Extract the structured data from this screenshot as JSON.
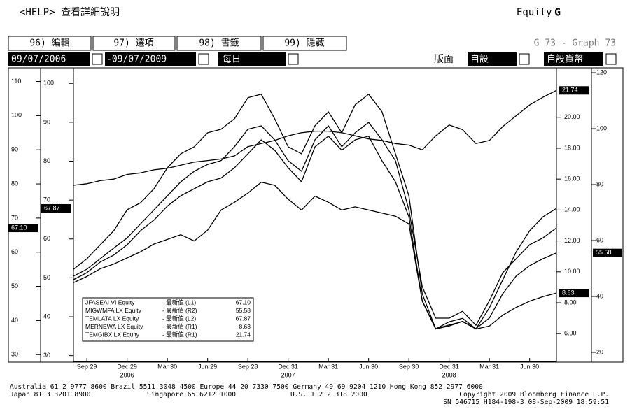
{
  "header": {
    "help": "<HELP> 查看詳細說明",
    "equity": "Equity",
    "equity_key": "G"
  },
  "toolbar": {
    "buttons": [
      "96) 編輯",
      "97) 選項",
      "98) 書籤",
      "99) 隱藏"
    ],
    "graph_id": "G 73 - Graph 73",
    "start_date": "09/07/2006",
    "end_date": "-09/07/2009",
    "frequency": "每日",
    "layout_label": "版面",
    "layout_value": "自設",
    "currency": "自設貨幣"
  },
  "chart_data": {
    "type": "line",
    "categories": [
      null,
      "Sep 29",
      null,
      null,
      "Dec 29",
      null,
      null,
      "Mar 30",
      null,
      null,
      "Jun 29",
      null,
      null,
      "Sep 28",
      null,
      null,
      "Dec 31",
      null,
      null,
      "Mar 31",
      null,
      null,
      "Jun 30",
      null,
      null,
      "Sep 30",
      null,
      null,
      "Dec 31",
      null,
      null,
      "Mar 31",
      null,
      null,
      "Jun 30",
      null,
      null
    ],
    "x_year_labels": [
      null,
      null,
      null,
      null,
      "2006",
      null,
      null,
      null,
      null,
      null,
      null,
      null,
      null,
      null,
      null,
      null,
      "2007",
      null,
      null,
      null,
      null,
      null,
      null,
      null,
      null,
      null,
      null,
      null,
      "2008",
      null,
      null,
      null,
      null,
      null,
      null,
      null,
      null
    ],
    "axes": [
      {
        "name": "L1",
        "ylim": [
          28,
          114
        ],
        "yticks": [
          30,
          40,
          50,
          60,
          70,
          80,
          90,
          100,
          110
        ]
      },
      {
        "name": "L2",
        "ylim": [
          28.5,
          104
        ],
        "yticks": [
          30,
          40,
          50,
          60,
          70,
          80,
          90,
          100
        ]
      },
      {
        "name": "R1",
        "ylim": [
          4.2,
          23.2
        ],
        "yticks": [
          {
            "value": 6,
            "label": "6.00"
          },
          {
            "value": 8,
            "label": "8.00"
          },
          {
            "value": 10,
            "label": "10.00"
          },
          {
            "value": 12,
            "label": "12.00"
          },
          {
            "value": 14,
            "label": "14.00"
          },
          {
            "value": 16,
            "label": "16.00"
          },
          {
            "value": 18,
            "label": "18.00"
          },
          {
            "value": 20,
            "label": "20.00"
          }
        ]
      },
      {
        "name": "R2",
        "ylim": [
          16.75,
          121.75
        ],
        "yticks": [
          20,
          40,
          60,
          80,
          100,
          120
        ]
      }
    ],
    "series": [
      {
        "name": "JFASEAI VI Equity",
        "legend_text": "- 最新值 (L1)",
        "axis": "L1",
        "color": "#000000",
        "last_label": "67.10",
        "values": [
          53.0,
          55.0,
          58.1,
          61.2,
          64.2,
          68.3,
          72.4,
          76.5,
          80.6,
          83.7,
          85.7,
          86.8,
          90.9,
          96.0,
          97.0,
          92.9,
          86.8,
          83.7,
          92.9,
          97.0,
          90.9,
          95.0,
          98.0,
          92.9,
          86.8,
          72.4,
          49.9,
          40.7,
          40.7,
          42.7,
          38.6,
          45.8,
          54.0,
          58.1,
          62.2,
          64.2,
          67.1
        ]
      },
      {
        "name": "MIGWMFA LX Equity",
        "legend_text": "- 最新值 (R2)",
        "axis": "R2",
        "color": "#000000",
        "last_label": "55.58",
        "values": [
          46.0,
          48.5,
          52.3,
          54.8,
          58.5,
          63.5,
          67.3,
          72.3,
          76.0,
          78.5,
          81.0,
          82.3,
          86.0,
          91.0,
          96.0,
          92.3,
          86.0,
          81.0,
          93.5,
          97.3,
          92.3,
          96.0,
          97.3,
          88.5,
          81.0,
          68.5,
          38.5,
          28.5,
          29.8,
          31.0,
          28.5,
          32.3,
          41.0,
          47.3,
          51.0,
          53.5,
          55.58
        ]
      },
      {
        "name": "TEMLATA LX Equity",
        "legend_text": "- 最新值 (L2)",
        "axis": "L2",
        "color": "#000000",
        "last_label": "67.87",
        "values": [
          52.2,
          54.9,
          58.5,
          62.1,
          67.5,
          69.3,
          72.9,
          78.3,
          81.9,
          83.7,
          87.3,
          88.2,
          90.9,
          96.3,
          97.2,
          90.9,
          83.7,
          81.9,
          89.1,
          92.7,
          87.3,
          94.5,
          97.2,
          92.7,
          81.9,
          71.1,
          45.9,
          36.9,
          38.7,
          39.6,
          36.9,
          42.3,
          49.5,
          56.7,
          62.1,
          65.7,
          67.87
        ]
      },
      {
        "name": "MERNEWA LX Equity",
        "legend_text": "- 最新值 (R1)",
        "axis": "R1",
        "color": "#000000",
        "last_label": "8.63",
        "values": [
          9.3,
          9.7,
          10.2,
          10.5,
          10.9,
          11.3,
          11.8,
          12.1,
          12.4,
          12.0,
          12.7,
          14.0,
          14.5,
          15.1,
          15.8,
          15.6,
          14.7,
          14.0,
          14.9,
          14.5,
          14.0,
          14.2,
          14.0,
          13.8,
          13.6,
          13.1,
          8.1,
          6.3,
          6.5,
          6.8,
          6.3,
          6.5,
          7.2,
          7.7,
          8.1,
          8.4,
          8.63
        ]
      },
      {
        "name": "TEMGIBX LX Equity",
        "legend_text": "- 最新值 (R1)",
        "axis": "R1",
        "color": "#000000",
        "last_label": "21.74",
        "values": [
          15.6,
          15.7,
          15.9,
          16.0,
          16.3,
          16.4,
          16.6,
          16.7,
          16.9,
          17.1,
          17.2,
          17.3,
          17.5,
          18.1,
          18.3,
          18.5,
          18.8,
          19.0,
          19.1,
          19.1,
          19.0,
          18.8,
          18.6,
          18.5,
          18.3,
          18.2,
          17.9,
          18.8,
          19.5,
          19.2,
          18.3,
          18.5,
          19.4,
          20.1,
          20.8,
          21.3,
          21.74
        ]
      }
    ]
  },
  "footer": {
    "line1": "Australia 61 2 9777 8600 Brazil 5511 3048 4500 Europe 44 20 7330 7500 Germany 49 69 9204 1210 Hong Kong 852 2977 6000",
    "japan": "Japan 81 3 3201 8900",
    "singapore": "Singapore 65 6212 1000",
    "us": "U.S. 1 212 318 2000",
    "copyright": "Copyright 2009 Bloomberg Finance L.P.",
    "line3": "SN 546715 H184-198-3 08-Sep-2009 18:59:51"
  }
}
